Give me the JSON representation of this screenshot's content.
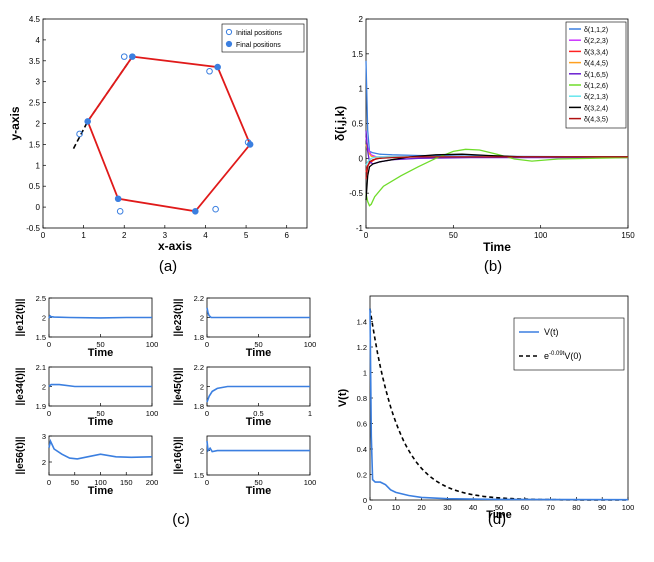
{
  "colors": {
    "blue": "#3b7fe0",
    "red": "#e01a1a",
    "black": "#000000",
    "axis": "#000000",
    "legend_colors": [
      "#3b7fe0",
      "#cc33ff",
      "#ff2222",
      "#ffa020",
      "#6a1fd0",
      "#6fdc2a",
      "#66e6ee",
      "#000000",
      "#b01010"
    ]
  },
  "chart_data": [
    {
      "panel": "a",
      "type": "scatter",
      "caption": "(a)",
      "xlabel": "x-axis",
      "ylabel": "y-axis",
      "xlim": [
        0,
        6.5
      ],
      "ylim": [
        -0.5,
        4.5
      ],
      "xticks": [
        "0",
        "1",
        "2",
        "3",
        "4",
        "5",
        "6"
      ],
      "yticks": [
        "-0.5",
        "0",
        "0.5",
        "1",
        "1.5",
        "2",
        "2.5",
        "3",
        "3.5",
        "4",
        "4.5"
      ],
      "legend": [
        "Initial positions",
        "Final positions"
      ],
      "initial_positions": [
        [
          2.0,
          3.6
        ],
        [
          4.1,
          3.25
        ],
        [
          5.05,
          1.55
        ],
        [
          4.25,
          -0.05
        ],
        [
          1.9,
          -0.1
        ],
        [
          0.9,
          1.75
        ]
      ],
      "final_positions": [
        [
          2.2,
          3.6
        ],
        [
          4.3,
          3.35
        ],
        [
          5.1,
          1.5
        ],
        [
          3.75,
          -0.1
        ],
        [
          1.85,
          0.2
        ],
        [
          1.1,
          2.05
        ]
      ],
      "formation": [
        [
          2.2,
          3.6
        ],
        [
          4.3,
          3.35
        ],
        [
          5.1,
          1.5
        ],
        [
          3.75,
          -0.1
        ],
        [
          1.85,
          0.2
        ],
        [
          1.1,
          2.05
        ],
        [
          2.2,
          3.6
        ]
      ],
      "leader_path": [
        [
          0.75,
          1.4
        ],
        [
          1.1,
          2.05
        ],
        [
          2.2,
          3.6
        ]
      ]
    },
    {
      "panel": "b",
      "type": "line",
      "caption": "(b)",
      "xlabel": "Time",
      "ylabel": "δ(i,j,k)",
      "xlim": [
        0,
        150
      ],
      "ylim": [
        -1,
        2
      ],
      "xticks": [
        "0",
        "50",
        "100",
        "150"
      ],
      "yticks": [
        "-1",
        "-0.5",
        "0",
        "0.5",
        "1",
        "1.5",
        "2"
      ],
      "series": [
        {
          "name": "δ(1,1,2)",
          "x": [
            0,
            1,
            2,
            4,
            8,
            15,
            30,
            60,
            150
          ],
          "values": [
            1.4,
            0.4,
            0.1,
            0.08,
            0.06,
            0.05,
            0.04,
            0.03,
            0.02
          ]
        },
        {
          "name": "δ(2,2,3)",
          "x": [
            0,
            1,
            3,
            6,
            12,
            25,
            60,
            150
          ],
          "values": [
            0.3,
            0.15,
            0.05,
            0.02,
            0.02,
            0.02,
            0.02,
            0.02
          ]
        },
        {
          "name": "δ(3,3,4)",
          "x": [
            0,
            1,
            3,
            6,
            12,
            25,
            60,
            150
          ],
          "values": [
            -0.2,
            -0.1,
            -0.05,
            0.0,
            0.02,
            0.02,
            0.02,
            0.02
          ]
        },
        {
          "name": "δ(4,4,5)",
          "x": [
            0,
            1,
            3,
            6,
            12,
            25,
            60,
            150
          ],
          "values": [
            0.2,
            0.1,
            0.03,
            0.01,
            0.02,
            0.02,
            0.02,
            0.02
          ]
        },
        {
          "name": "δ(1,6,5)",
          "x": [
            0,
            1,
            2,
            4,
            8,
            15,
            30,
            60,
            150
          ],
          "values": [
            0.4,
            0.1,
            -0.05,
            -0.08,
            -0.05,
            -0.02,
            0.0,
            0.01,
            0.01
          ]
        },
        {
          "name": "δ(1,2,6)",
          "x": [
            0,
            1,
            2,
            3,
            5,
            10,
            20,
            30,
            40,
            50,
            57,
            65,
            75,
            85,
            95,
            110,
            150
          ],
          "values": [
            -0.5,
            -0.62,
            -0.68,
            -0.66,
            -0.55,
            -0.4,
            -0.25,
            -0.12,
            0.0,
            0.1,
            0.13,
            0.12,
            0.06,
            -0.01,
            -0.04,
            -0.01,
            0.01
          ]
        },
        {
          "name": "δ(2,1,3)",
          "x": [
            0,
            1,
            3,
            6,
            12,
            25,
            60,
            150
          ],
          "values": [
            -0.1,
            -0.05,
            0.0,
            0.02,
            0.02,
            0.02,
            0.02,
            0.02
          ]
        },
        {
          "name": "δ(3,2,4)",
          "x": [
            0,
            1,
            2,
            4,
            8,
            15,
            25,
            40,
            55,
            70,
            90,
            150
          ],
          "values": [
            -0.6,
            -0.25,
            -0.12,
            -0.08,
            -0.05,
            -0.02,
            0.02,
            0.05,
            0.06,
            0.04,
            0.02,
            0.02
          ]
        },
        {
          "name": "δ(4,3,5)",
          "x": [
            0,
            1,
            2,
            4,
            8,
            15,
            30,
            60,
            150
          ],
          "values": [
            -0.3,
            -0.12,
            -0.05,
            -0.02,
            0.0,
            0.01,
            0.02,
            0.02,
            0.02
          ]
        }
      ]
    },
    {
      "panel": "c",
      "type": "line",
      "caption": "(c)",
      "subplots": [
        {
          "ylabel": "||e12(t)||",
          "xlabel": "Time",
          "xlim": [
            0,
            100
          ],
          "ylim": [
            1.5,
            2.5
          ],
          "xticks": [
            "0",
            "50",
            "100"
          ],
          "yticks": [
            "1.5",
            "2",
            "2.5"
          ],
          "x": [
            0,
            1,
            2,
            5,
            20,
            50,
            75,
            100
          ],
          "values": [
            1.98,
            2.04,
            2.02,
            2.01,
            2.0,
            1.99,
            2.0,
            2.0
          ]
        },
        {
          "ylabel": "||e23(t)||",
          "xlabel": "Time",
          "xlim": [
            0,
            100
          ],
          "ylim": [
            1.8,
            2.2
          ],
          "xticks": [
            "0",
            "50",
            "100"
          ],
          "yticks": [
            "1.8",
            "2",
            "2.2"
          ],
          "x": [
            0,
            1,
            2,
            4,
            20,
            50,
            100
          ],
          "values": [
            2.1,
            2.05,
            2.02,
            2.0,
            2.0,
            2.0,
            2.0
          ]
        },
        {
          "ylabel": "||e34(t)||",
          "xlabel": "Time",
          "xlim": [
            0,
            100
          ],
          "ylim": [
            1.9,
            2.1
          ],
          "xticks": [
            "0",
            "50",
            "100"
          ],
          "yticks": [
            "1.9",
            "2",
            "2.1"
          ],
          "x": [
            0,
            2,
            10,
            25,
            50,
            75,
            100
          ],
          "values": [
            2.0,
            2.01,
            2.01,
            2.0,
            2.0,
            2.0,
            2.0
          ]
        },
        {
          "ylabel": "||e45(t)||",
          "xlabel": "Time",
          "xlim": [
            0,
            1
          ],
          "ylim": [
            1.8,
            2.2
          ],
          "xticks": [
            "0",
            "0.5",
            "1"
          ],
          "yticks": [
            "1.8",
            "2",
            "2.2"
          ],
          "x": [
            0,
            0.02,
            0.05,
            0.1,
            0.2,
            0.3,
            0.5,
            0.75,
            1.0
          ],
          "values": [
            1.84,
            1.9,
            1.95,
            1.98,
            2.0,
            2.0,
            2.0,
            2.0,
            2.0
          ]
        },
        {
          "ylabel": "||e56(t)||",
          "xlabel": "Time",
          "xlim": [
            0,
            200
          ],
          "ylim": [
            1.5,
            3
          ],
          "xticks": [
            "0",
            "50",
            "100",
            "150",
            "200"
          ],
          "yticks": [
            "2",
            "3"
          ],
          "x": [
            0,
            3,
            10,
            25,
            40,
            55,
            75,
            100,
            130,
            160,
            200
          ],
          "values": [
            2.55,
            2.8,
            2.5,
            2.3,
            2.15,
            2.12,
            2.2,
            2.3,
            2.2,
            2.18,
            2.2
          ]
        },
        {
          "ylabel": "||e16(t)||",
          "xlabel": "Time",
          "xlim": [
            0,
            100
          ],
          "ylim": [
            1.5,
            2.3
          ],
          "xticks": [
            "0",
            "50",
            "100"
          ],
          "yticks": [
            "1.5",
            "2"
          ],
          "x": [
            0,
            1,
            3,
            5,
            10,
            30,
            60,
            100
          ],
          "values": [
            2.2,
            2.0,
            2.05,
            1.98,
            2.0,
            2.0,
            2.0,
            2.0
          ]
        }
      ]
    },
    {
      "panel": "d",
      "type": "line",
      "caption": "(d)",
      "xlabel": "Time",
      "ylabel": "V(t)",
      "xlim": [
        0,
        100
      ],
      "ylim": [
        0,
        1.6
      ],
      "xticks": [
        "0",
        "10",
        "20",
        "30",
        "40",
        "50",
        "60",
        "70",
        "80",
        "90",
        "100"
      ],
      "yticks": [
        "0",
        "0.2",
        "0.4",
        "0.6",
        "0.8",
        "1",
        "1.2",
        "1.4"
      ],
      "legend": [
        "V(t)",
        "e^{-0.09t}V(0)"
      ],
      "legend_main": "e",
      "legend_sup": "-0.09t",
      "legend_tail": "V(0)",
      "series": [
        {
          "name": "V(t)",
          "x": [
            0,
            0.5,
            1,
            2,
            4,
            6,
            8,
            10,
            15,
            20,
            30,
            50,
            100
          ],
          "values": [
            1.5,
            0.5,
            0.16,
            0.14,
            0.14,
            0.12,
            0.08,
            0.06,
            0.035,
            0.02,
            0.01,
            0.005,
            0.002
          ]
        },
        {
          "name": "e^{-0.09t}V(0)",
          "formula": "exp",
          "V0": 1.5,
          "rate": 0.09
        }
      ]
    }
  ]
}
